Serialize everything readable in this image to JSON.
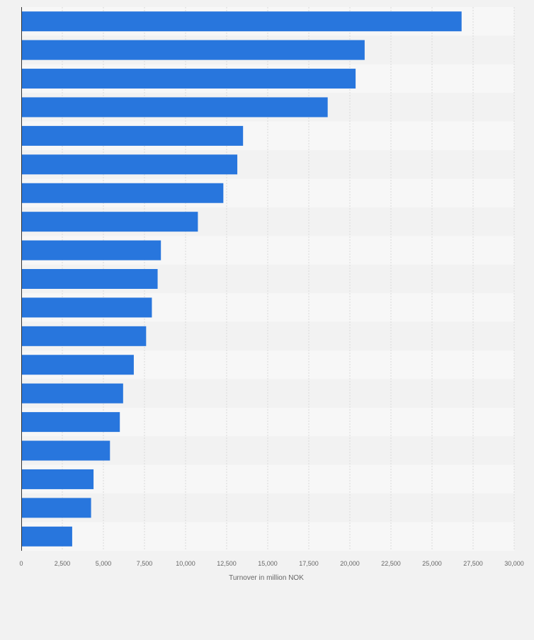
{
  "chart_data": {
    "type": "bar",
    "orientation": "horizontal",
    "title": "",
    "xlabel": "Turnover in million NOK",
    "ylabel": "",
    "xlim": [
      0,
      30000
    ],
    "x_ticks": [
      0,
      2500,
      5000,
      7500,
      10000,
      12500,
      15000,
      17500,
      20000,
      22500,
      25000,
      27500,
      30000
    ],
    "x_tick_labels": [
      "0",
      "2,500",
      "5,000",
      "7,500",
      "10,000",
      "12,500",
      "15,000",
      "17,500",
      "20,000",
      "22,500",
      "25,000",
      "27,500",
      "30,000"
    ],
    "categories": [
      "",
      "",
      "",
      "",
      "",
      "",
      "",
      "",
      "",
      "",
      "",
      "",
      "",
      "",
      "",
      "",
      "",
      "",
      ""
    ],
    "values": [
      26800,
      20900,
      20350,
      18650,
      13500,
      13150,
      12300,
      10750,
      8500,
      8300,
      7950,
      7600,
      6850,
      6200,
      6000,
      5400,
      4400,
      4250,
      3100
    ],
    "grid": "vertical dashed",
    "legend": "none",
    "colors": {
      "bar": "#2876dd",
      "background": "#f2f2f2",
      "band_light": "#f7f7f7",
      "band_dark": "#f2f2f2",
      "grid": "#d9d9d9",
      "axis": "#333333",
      "tick_text": "#666666"
    }
  }
}
